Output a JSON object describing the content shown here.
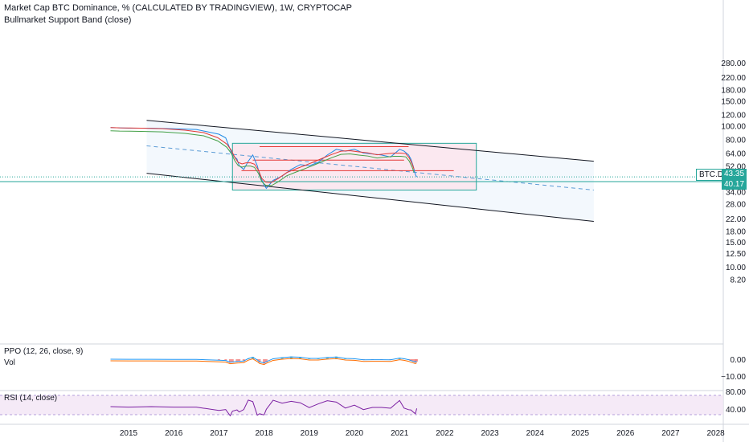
{
  "legend": {
    "main_title": "Market Cap BTC Dominance, % (CALCULATED BY TRADINGVIEW), 1W, CRYPTOCAP",
    "indicator": "Bullmarket Support Band (close)",
    "ppo": "PPO (12, 26, close, 9)",
    "vol": "Vol",
    "rsi": "RSI (14, close)"
  },
  "badges": {
    "symbol": "BTC.D",
    "symbol_value": "43.35",
    "line_value": "40.17"
  },
  "colors": {
    "price_line": "#1e88e5",
    "box_border": "#26a69a",
    "box_fill": "#fce4ec",
    "channel_fill": "#f3f8fd",
    "channel_line": "#131722",
    "mid_line": "#5b9bd5",
    "band_red": "#e53935",
    "band_green": "#43a047",
    "rsi_line": "#7b1fa2",
    "rsi_band": "#f3e5f5",
    "ppo_macd": "#2196f3",
    "ppo_signal": "#ff6d00",
    "hist_up": "#26a69a",
    "hist_down": "#ef5350"
  },
  "chart_data": {
    "type": "line",
    "title": "Market Cap BTC Dominance, % (CALCULATED BY TRADINGVIEW), 1W, CRYPTOCAP",
    "scale": "log",
    "x_ticks": [
      "2015",
      "2016",
      "2017",
      "2018",
      "2019",
      "2020",
      "2021",
      "2022",
      "2023",
      "2024",
      "2025",
      "2026",
      "2027",
      "2028"
    ],
    "y_ticks": [
      "280.00",
      "220.00",
      "180.00",
      "150.00",
      "120.00",
      "100.00",
      "80.00",
      "64.00",
      "52.00",
      "43.35",
      "40.17",
      "34.00",
      "28.00",
      "22.00",
      "18.00",
      "15.00",
      "12.50",
      "10.00",
      "8.20"
    ],
    "series": [
      {
        "name": "BTC.D",
        "x": [
          2014.6,
          2015.0,
          2015.5,
          2016.0,
          2016.5,
          2017.0,
          2017.15,
          2017.25,
          2017.3,
          2017.4,
          2017.45,
          2017.55,
          2017.65,
          2017.75,
          2017.85,
          2017.9,
          2018.0,
          2018.05,
          2018.2,
          2018.4,
          2018.6,
          2018.8,
          2019.0,
          2019.2,
          2019.4,
          2019.6,
          2019.8,
          2020.0,
          2020.2,
          2020.4,
          2020.6,
          2020.8,
          2021.0,
          2021.1,
          2021.2,
          2021.25,
          2021.3,
          2021.35,
          2021.38
        ],
        "values": [
          97,
          96,
          96,
          95,
          94,
          87,
          82,
          68,
          62,
          58,
          52,
          49,
          56,
          62,
          52,
          45,
          38,
          36,
          41,
          44,
          49,
          53,
          52,
          55,
          62,
          68,
          66,
          68,
          64,
          63,
          62,
          60,
          68,
          66,
          62,
          58,
          52,
          45,
          43.35
        ]
      }
    ],
    "horizontal_lines": [
      71,
      57,
      48,
      40.17
    ],
    "box": {
      "x_range": [
        2017.3,
        2022.7
      ],
      "y_range": [
        35,
        75
      ]
    },
    "channel": {
      "upper": [
        [
          2015.4,
          109
        ],
        [
          2025.3,
          56
        ]
      ],
      "lower": [
        [
          2015.4,
          46
        ],
        [
          2025.3,
          21
        ]
      ],
      "middle": [
        [
          2015.4,
          72
        ],
        [
          2025.3,
          35
        ]
      ]
    },
    "rsi_ticks": [
      "80.00",
      "40.00"
    ],
    "ppo_ticks": [
      "0.00",
      "−10.00"
    ]
  }
}
